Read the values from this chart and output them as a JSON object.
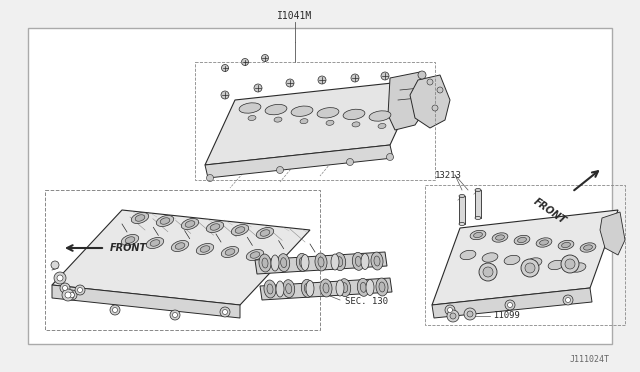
{
  "bg_color": "#f0f0f0",
  "white": "#ffffff",
  "border_color": "#999999",
  "line_color": "#2a2a2a",
  "text_color": "#1a1a1a",
  "gray_fill": "#e0e0e0",
  "dark_gray": "#888888",
  "fig_width": 6.4,
  "fig_height": 3.72,
  "dpi": 100,
  "title_label": "I1041M",
  "footer_label": "J111024T",
  "label_13213": "13213",
  "label_11099": "I1099",
  "label_sec130": "SEC. 130",
  "label_front": "FRONT"
}
